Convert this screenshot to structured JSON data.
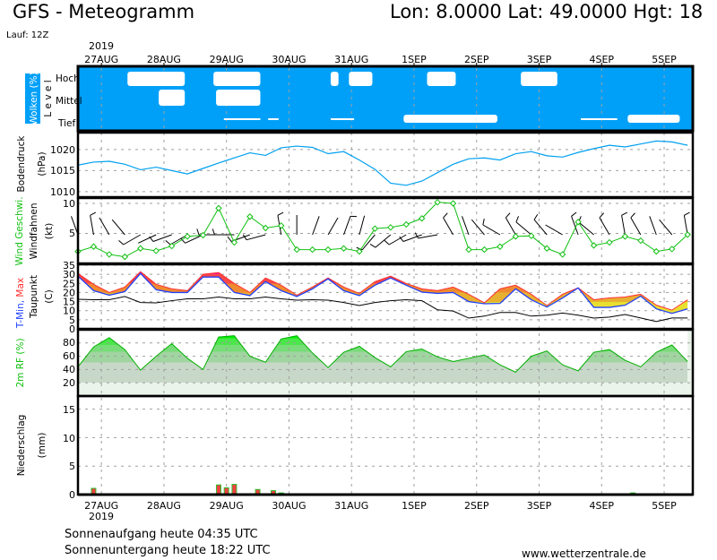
{
  "header": {
    "title": "GFS - Meteogramm",
    "location": "Lon: 8.0000 Lat: 49.0000 Hgt: 18",
    "run": "Lauf: 12Z"
  },
  "footer": {
    "sunrise": "Sonnenaufgang heute 04:35 UTC",
    "sunset": "Sonnenuntergang heute 18:22 UTC",
    "source": "www.wetterzentrale.de"
  },
  "colors": {
    "cloud_bg": "#00a0f8",
    "pressure": "#00a0f0",
    "wind": "#10c010",
    "tmin": "#2040ff",
    "tmax": "#ff3030",
    "dewpoint": "#000000",
    "rh_line": "#00b000",
    "precip_fill": "#f04040",
    "precip_edge": "#30c030"
  },
  "chart_data": {
    "type": "line",
    "title": "GFS - Meteogramm",
    "time": {
      "start": "26AUG 15Z",
      "step_hours": 6,
      "range_hours": [
        0,
        236
      ],
      "year": "2019",
      "day_labels": [
        "27AUG",
        "28AUG",
        "29AUG",
        "30AUG",
        "31AUG",
        "1SEP",
        "2SEP",
        "3SEP",
        "4SEP",
        "5SEP"
      ],
      "first_day_hour": 9
    },
    "clouds": {
      "label": "Wolken (%)",
      "level_label": "L e v e l",
      "levels": [
        "Hoch",
        "Mittel",
        "Tief"
      ],
      "patches": [
        {
          "level": "Hoch",
          "from": 19,
          "to": 41
        },
        {
          "level": "Hoch",
          "from": 52,
          "to": 70
        },
        {
          "level": "Hoch",
          "from": 97,
          "to": 100
        },
        {
          "level": "Hoch",
          "from": 104,
          "to": 113
        },
        {
          "level": "Hoch",
          "from": 134,
          "to": 145
        },
        {
          "level": "Hoch",
          "from": 170,
          "to": 184
        },
        {
          "level": "Mittel",
          "from": 31,
          "to": 41
        },
        {
          "level": "Mittel",
          "from": 53,
          "to": 70
        },
        {
          "level": "Tief",
          "from": 56,
          "to": 70
        },
        {
          "level": "Tief",
          "from": 73,
          "to": 77
        },
        {
          "level": "Tief",
          "from": 97,
          "to": 106
        },
        {
          "level": "Tief",
          "from": 125,
          "to": 161
        },
        {
          "level": "Tief",
          "from": 193,
          "to": 207
        },
        {
          "level": "Tief",
          "from": 211,
          "to": 231
        }
      ]
    },
    "pressure": {
      "label": "Bodendruck",
      "unit": "(hPa)",
      "ylim": [
        1008.7,
        1024.0
      ],
      "ticks": [
        "1010",
        "1015",
        "1020"
      ],
      "values": [
        1016.3,
        1017,
        1017.2,
        1016.5,
        1015.2,
        1015.8,
        1015,
        1014.2,
        1015.5,
        1016.8,
        1018,
        1019.2,
        1018.6,
        1020.4,
        1020.8,
        1020.5,
        1019,
        1019.5,
        1017.5,
        1015.3,
        1012,
        1011.5,
        1012.5,
        1014.5,
        1016.5,
        1017.8,
        1018,
        1017.5,
        1019,
        1019.5,
        1018.5,
        1018.2,
        1019.3,
        1020.2,
        1021,
        1020.6,
        1021.3,
        1022,
        1021.8,
        1021
      ]
    },
    "wind": {
      "label": "Wind Geschwi.",
      "label2": "Windfahnen",
      "unit": "(kt)",
      "ylim": [
        0,
        10.9
      ],
      "ticks": [
        "5",
        "10"
      ],
      "speed": [
        2,
        2.8,
        1.5,
        1.1,
        2.5,
        2.1,
        2.9,
        4.5,
        4.7,
        9.2,
        3.5,
        7.8,
        5.9,
        6.3,
        2.3,
        2.3,
        2.3,
        2.5,
        2,
        5.8,
        6,
        6.5,
        7.5,
        10.2,
        10,
        2.3,
        2.3,
        2.8,
        4.5,
        4.6,
        2.5,
        1.5,
        6.9,
        3,
        3.5,
        4.5,
        3.8,
        2,
        2.4,
        4.8
      ],
      "direction_deg": [
        340,
        350,
        330,
        320,
        240,
        245,
        250,
        240,
        245,
        270,
        270,
        250,
        255,
        350,
        0,
        20,
        30,
        20,
        15,
        220,
        230,
        240,
        250,
        260,
        330,
        340,
        320,
        300,
        330,
        310,
        320,
        300,
        340,
        310,
        330,
        350,
        330,
        340,
        320,
        350
      ]
    },
    "temperature": {
      "label_min": "T-Min,",
      "label_max": "Max",
      "label_dew": "Taupunkt",
      "unit": "(C)",
      "ylim": [
        0,
        35.5
      ],
      "ticks": [
        "0",
        "5",
        "10",
        "15",
        "20",
        "25",
        "30",
        "35"
      ],
      "tmax": [
        30.5,
        24.5,
        20,
        23,
        31.5,
        24.5,
        22,
        21,
        30,
        31,
        25,
        20,
        28,
        24,
        18.5,
        23,
        28,
        23,
        19.5,
        26,
        29,
        25,
        22,
        21,
        23,
        19,
        14.3,
        22,
        24,
        19,
        12.8,
        19,
        22.6,
        16,
        17,
        17.5,
        19,
        13,
        10.3,
        16
      ],
      "tmin": [
        29,
        21,
        18.5,
        20.5,
        30.5,
        21.5,
        20,
        20,
        28.5,
        28.5,
        20,
        18.3,
        26,
        21,
        17.8,
        22,
        27.5,
        21,
        18.3,
        24,
        28,
        24,
        20.2,
        19.5,
        20,
        15,
        13.8,
        14,
        22,
        16,
        12,
        17,
        22.5,
        11.8,
        11.8,
        13,
        18,
        11,
        8.5,
        11
      ],
      "dewpoint": [
        16.3,
        16,
        16,
        17.8,
        14.5,
        14.3,
        15.5,
        16.5,
        16.5,
        17.5,
        16.5,
        16.5,
        17.5,
        16.5,
        15.8,
        16,
        15.8,
        14.5,
        12.8,
        14.5,
        15.5,
        16,
        15.5,
        10.5,
        9.8,
        5.9,
        7,
        9,
        9,
        7,
        7.5,
        8.7,
        7.5,
        5.9,
        6.5,
        7.9,
        6,
        4,
        6,
        6
      ]
    },
    "humidity": {
      "label": "2m RF (%)",
      "ylim": [
        0,
        100
      ],
      "ticks": [
        "20",
        "40",
        "60",
        "80"
      ],
      "values": [
        44,
        74,
        88,
        70,
        39,
        60,
        79,
        57,
        40,
        89,
        91,
        60,
        51,
        86,
        91,
        65,
        43,
        66,
        75,
        58,
        44,
        67,
        71,
        59,
        52,
        57,
        62,
        47,
        36,
        60,
        68,
        47,
        38,
        66,
        70,
        54,
        44,
        66,
        77,
        52
      ]
    },
    "precipitation": {
      "label": "Niederschlag",
      "unit": "(mm)",
      "ylim": [
        0,
        17.3
      ],
      "ticks": [
        "0",
        "5",
        "10",
        "15"
      ],
      "bars": [
        {
          "hour": 6,
          "mm": 1.1
        },
        {
          "hour": 54,
          "mm": 1.7
        },
        {
          "hour": 57,
          "mm": 1.2
        },
        {
          "hour": 60,
          "mm": 1.8
        },
        {
          "hour": 69,
          "mm": 0.9
        },
        {
          "hour": 75,
          "mm": 0.7
        },
        {
          "hour": 78,
          "mm": 0.3
        },
        {
          "hour": 213,
          "mm": 0.3
        }
      ]
    }
  }
}
